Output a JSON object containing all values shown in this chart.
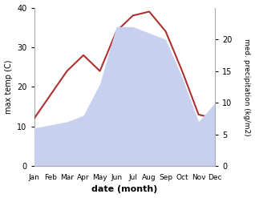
{
  "months": [
    "Jan",
    "Feb",
    "Mar",
    "Apr",
    "May",
    "Jun",
    "Jul",
    "Aug",
    "Sep",
    "Oct",
    "Nov",
    "Dec"
  ],
  "max_temp": [
    12,
    18,
    24,
    28,
    24,
    34,
    38,
    39,
    34,
    24,
    13,
    12
  ],
  "precipitation": [
    6,
    6.5,
    7,
    8,
    13,
    22,
    22,
    21,
    20,
    14,
    7,
    10
  ],
  "temp_color": "#b03030",
  "precip_color_fill": "#c8d0f0",
  "temp_ylim": [
    0,
    40
  ],
  "temp_yticks": [
    0,
    10,
    20,
    30,
    40
  ],
  "precip_ylim": [
    0,
    25
  ],
  "precip_yticks": [
    0,
    5,
    10,
    15,
    20
  ],
  "xlabel": "date (month)",
  "ylabel_left": "max temp (C)",
  "ylabel_right": "med. precipitation (kg/m2)",
  "background_color": "#ffffff"
}
